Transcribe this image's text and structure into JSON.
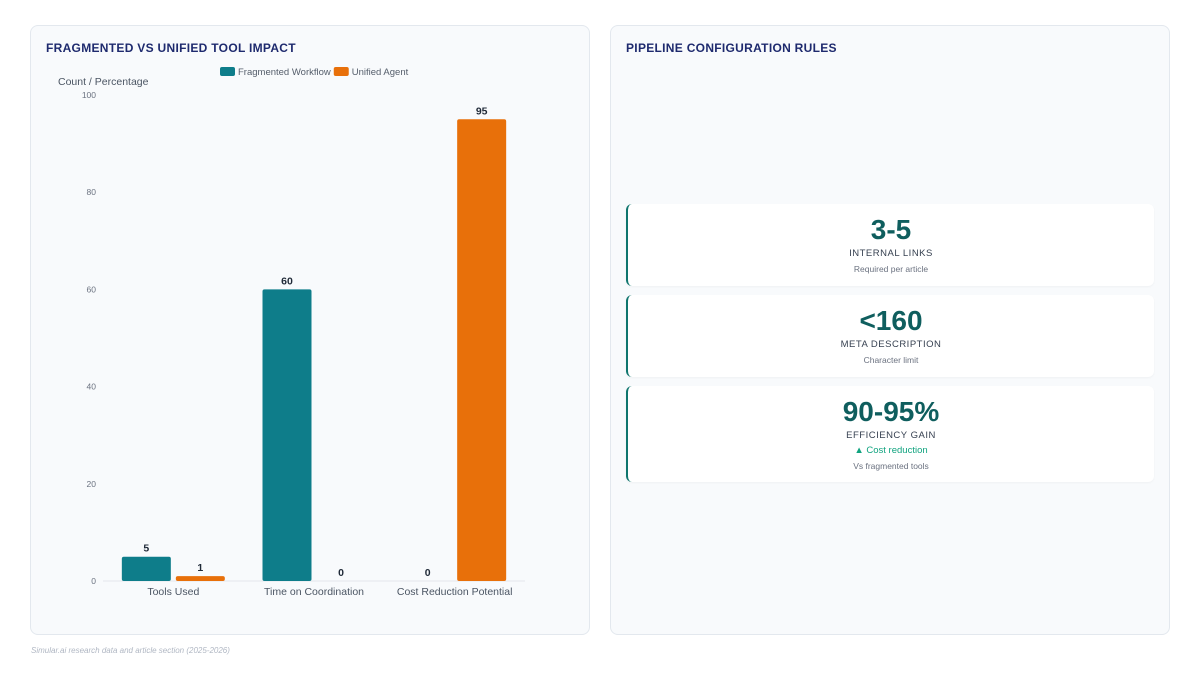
{
  "chart_panel": {
    "title": "FRAGMENTED VS UNIFIED TOOL IMPACT"
  },
  "chart_data": {
    "type": "bar",
    "title": "FRAGMENTED VS UNIFIED TOOL IMPACT",
    "xlabel": "",
    "ylabel": "Count / Percentage",
    "categories": [
      "Tools Used",
      "Time on Coordination",
      "Cost Reduction Potential"
    ],
    "series": [
      {
        "name": "Fragmented Workflow",
        "color": "#0e7d8a",
        "values": [
          5,
          60,
          0
        ]
      },
      {
        "name": "Unified Agent",
        "color": "#e8700a",
        "values": [
          1,
          0,
          95
        ]
      }
    ],
    "ylim": [
      0,
      100
    ],
    "yticks": [
      0,
      20,
      40,
      60,
      80,
      100
    ],
    "grid": false,
    "legend": "top-center",
    "data_labels": true
  },
  "rules_panel": {
    "title": "PIPELINE CONFIGURATION RULES",
    "kpis": [
      {
        "value": "3-5",
        "label": "INTERNAL LINKS",
        "sub": "Required per article"
      },
      {
        "value": "<160",
        "label": "META DESCRIPTION",
        "sub": "Character limit"
      },
      {
        "value": "90-95%",
        "label": "EFFICIENCY GAIN",
        "trend": "▲ Cost reduction",
        "sub": "Vs fragmented tools"
      }
    ]
  },
  "footer": "Simular.ai research data and article section (2025-2026)"
}
